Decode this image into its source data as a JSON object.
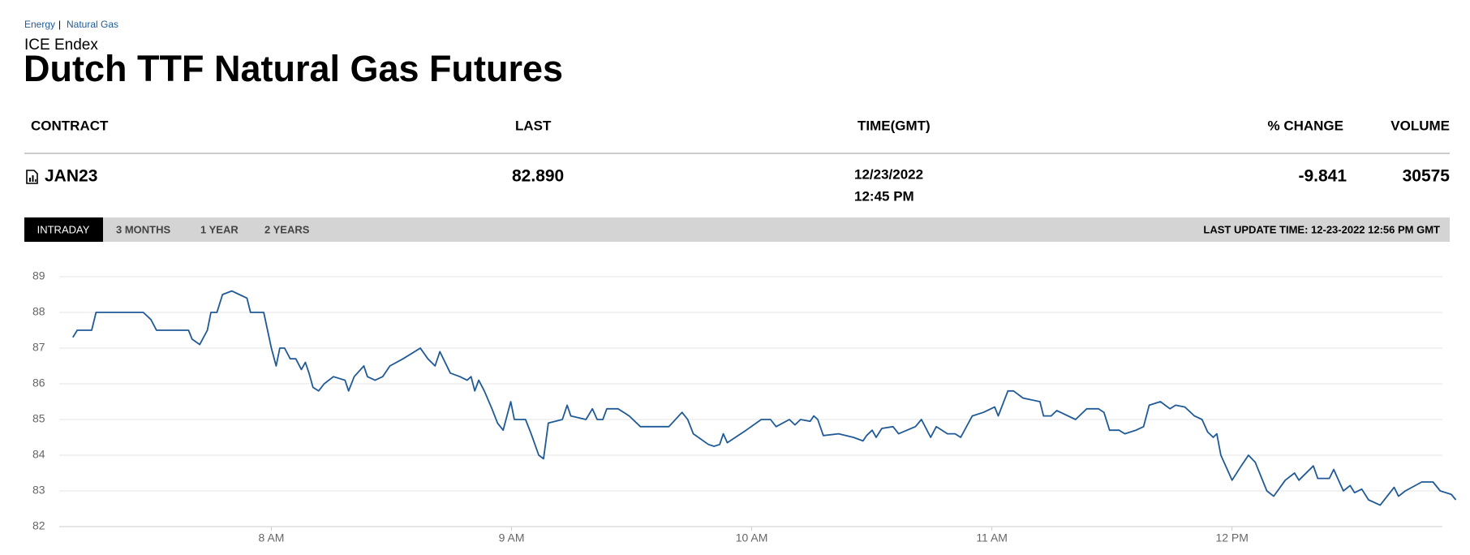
{
  "breadcrumb": [
    "Energy",
    "Natural Gas"
  ],
  "exchange": "ICE Endex",
  "title": "Dutch TTF Natural Gas Futures",
  "table": {
    "headers": [
      "CONTRACT",
      "LAST",
      "TIME(GMT)",
      "% CHANGE",
      "VOLUME"
    ],
    "row": {
      "contract": "JAN23",
      "last": "82.890",
      "date": "12/23/2022",
      "time": "12:45 PM",
      "change": "-9.841",
      "volume": "30575"
    }
  },
  "tabs": [
    "INTRADAY",
    "3 MONTHS",
    "1 YEAR",
    "2 YEARS"
  ],
  "last_update": "LAST UPDATE TIME: 12-23-2022 12:56 PM GMT",
  "chart_data": {
    "type": "line",
    "x": [
      430.4,
      431.5,
      435.1,
      436.2,
      448.0,
      449.9,
      451.3,
      453.9,
      459.3,
      460.2,
      462.1,
      464.0,
      464.9,
      466.4,
      467.8,
      470.1,
      472.0,
      473.9,
      474.8,
      478.1,
      480.0,
      481.2,
      482.1,
      483.3,
      484.7,
      486.1,
      487.5,
      488.5,
      489.4,
      490.4,
      491.8,
      493.2,
      495.5,
      498.4,
      499.3,
      500.7,
      503.1,
      504.0,
      505.9,
      507.8,
      509.6,
      512.9,
      517.2,
      519.1,
      520.9,
      522.1,
      524.7,
      527.1,
      528.9,
      529.9,
      530.8,
      531.8,
      533.2,
      535.1,
      536.5,
      537.9,
      539.8,
      540.7,
      543.5,
      544.9,
      546.8,
      548.0,
      549.2,
      552.7,
      553.9,
      554.8,
      558.6,
      560.2,
      561.4,
      562.8,
      563.8,
      566.6,
      569.4,
      572.2,
      576.0,
      579.3,
      582.6,
      584.0,
      585.4,
      589.2,
      590.6,
      592.0,
      592.9,
      593.9,
      598.6,
      602.4,
      604.7,
      606.1,
      609.4,
      610.8,
      612.2,
      614.6,
      615.5,
      616.5,
      617.9,
      621.7,
      625.4,
      627.8,
      628.7,
      630.1,
      631.1,
      632.5,
      635.3,
      636.7,
      640.9,
      642.4,
      644.7,
      646.1,
      648.9,
      650.8,
      652.2,
      655.1,
      657.9,
      660.7,
      661.6,
      664.0,
      665.4,
      667.8,
      672.0,
      672.9,
      674.8,
      676.2,
      680.9,
      683.7,
      686.6,
      688.0,
      689.4,
      691.8,
      693.2,
      696.0,
      697.9,
      699.3,
      702.1,
      704.5,
      705.9,
      708.2,
      710.6,
      712.5,
      713.9,
      715.3,
      716.2,
      717.2,
      720.0,
      722.3,
      724.1,
      725.8,
      728.7,
      730.4,
      733.3,
      735.6,
      736.7,
      740.3,
      741.4,
      744.3,
      745.4,
      747.8,
      749.5,
      750.6,
      752.4,
      754.1,
      757.0,
      760.5,
      761.6,
      763.3,
      767.4,
      770.2,
      772.0,
      774.8,
      775.9
    ],
    "series": [
      {
        "color": "#1f5a96",
        "values": [
          87.3,
          87.5,
          87.5,
          88.0,
          88.0,
          87.8,
          87.5,
          87.5,
          87.5,
          87.25,
          87.1,
          87.5,
          88.0,
          88.0,
          88.5,
          88.6,
          88.5,
          88.4,
          88.0,
          88.0,
          87.0,
          86.5,
          87.0,
          87.0,
          86.7,
          86.7,
          86.4,
          86.6,
          86.3,
          85.9,
          85.8,
          86.0,
          86.2,
          86.1,
          85.8,
          86.2,
          86.5,
          86.2,
          86.1,
          86.2,
          86.5,
          86.7,
          87.0,
          86.7,
          86.5,
          86.9,
          86.3,
          86.2,
          86.1,
          86.2,
          85.8,
          86.1,
          85.8,
          85.3,
          84.9,
          84.7,
          85.5,
          85.0,
          85.0,
          84.6,
          84.0,
          83.9,
          84.9,
          85.0,
          85.4,
          85.1,
          85.0,
          85.3,
          85.0,
          85.0,
          85.3,
          85.3,
          85.1,
          84.8,
          84.8,
          84.8,
          85.2,
          85.0,
          84.6,
          84.3,
          84.25,
          84.3,
          84.6,
          84.35,
          84.7,
          85.0,
          85.0,
          84.8,
          85.0,
          84.85,
          85.0,
          84.95,
          85.1,
          85.0,
          84.55,
          84.6,
          84.5,
          84.4,
          84.55,
          84.7,
          84.5,
          84.75,
          84.8,
          84.6,
          84.8,
          85.0,
          84.5,
          84.8,
          84.6,
          84.6,
          84.5,
          85.1,
          85.2,
          85.35,
          85.1,
          85.8,
          85.8,
          85.6,
          85.5,
          85.1,
          85.1,
          85.25,
          85.0,
          85.3,
          85.3,
          85.2,
          84.7,
          84.7,
          84.6,
          84.7,
          84.8,
          85.4,
          85.5,
          85.3,
          85.4,
          85.35,
          85.1,
          85.0,
          84.65,
          84.5,
          84.6,
          84.0,
          83.3,
          83.7,
          84.0,
          83.8,
          83.0,
          82.85,
          83.3,
          83.5,
          83.3,
          83.7,
          83.35,
          83.35,
          83.6,
          83.0,
          83.15,
          82.95,
          83.05,
          82.75,
          82.6,
          83.1,
          82.85,
          83.0,
          83.25,
          83.25,
          83.0,
          82.9,
          82.75
        ]
      }
    ],
    "xlim": [
      427,
      776
    ],
    "xticks": [
      {
        "value": 480,
        "label": "8 AM"
      },
      {
        "value": 540,
        "label": "9 AM"
      },
      {
        "value": 600,
        "label": "10 AM"
      },
      {
        "value": 660,
        "label": "11 AM"
      },
      {
        "value": 720,
        "label": "12 PM"
      }
    ],
    "ylim": [
      82,
      89
    ],
    "yticks": [
      82,
      83,
      84,
      85,
      86,
      87,
      88,
      89
    ],
    "grid": true
  }
}
